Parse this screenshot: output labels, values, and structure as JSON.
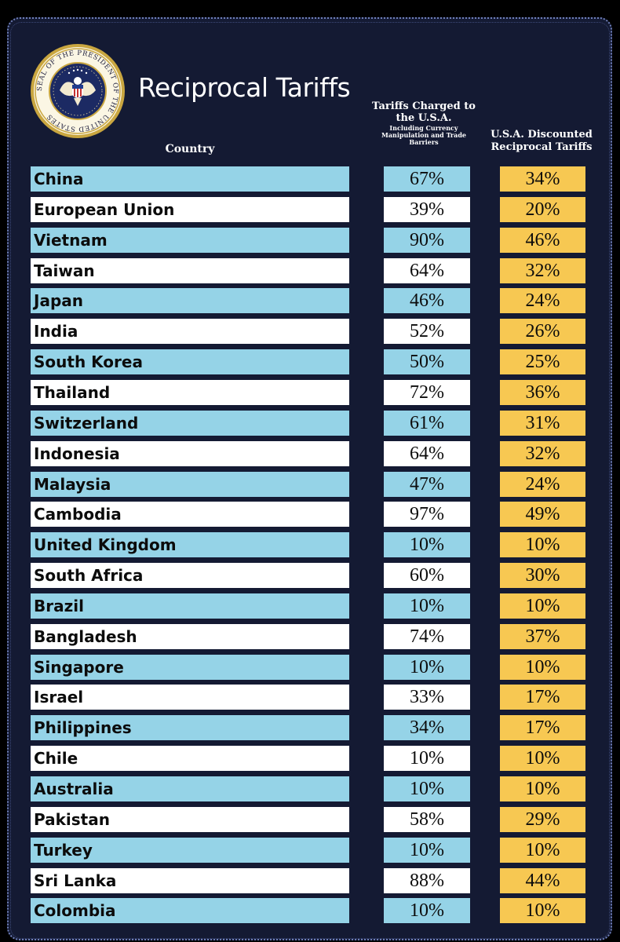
{
  "title": "Reciprocal Tariffs",
  "seal_text": "SEAL OF THE PRESIDENT OF THE UNITED STATES",
  "headers": {
    "country": "Country",
    "charged_main": "Tariffs Charged to the U.S.A.",
    "charged_sub": "Including Currency Manipulation and Trade Barriers",
    "reciprocal": "U.S.A. Discounted Reciprocal Tariffs"
  },
  "colors": {
    "panel_bg": "#141a33",
    "row_blue": "#95d3e7",
    "row_white": "#ffffff",
    "reciprocal_col": "#f7c852"
  },
  "chart_data": {
    "type": "table",
    "title": "Reciprocal Tariffs",
    "columns": [
      "Country",
      "Tariffs Charged to the U.S.A. Including Currency Manipulation and Trade Barriers",
      "U.S.A. Discounted Reciprocal Tariffs"
    ],
    "rows": [
      {
        "country": "China",
        "charged": "67%",
        "reciprocal": "34%"
      },
      {
        "country": "European Union",
        "charged": "39%",
        "reciprocal": "20%"
      },
      {
        "country": "Vietnam",
        "charged": "90%",
        "reciprocal": "46%"
      },
      {
        "country": "Taiwan",
        "charged": "64%",
        "reciprocal": "32%"
      },
      {
        "country": "Japan",
        "charged": "46%",
        "reciprocal": "24%"
      },
      {
        "country": "India",
        "charged": "52%",
        "reciprocal": "26%"
      },
      {
        "country": "South Korea",
        "charged": "50%",
        "reciprocal": "25%"
      },
      {
        "country": "Thailand",
        "charged": "72%",
        "reciprocal": "36%"
      },
      {
        "country": "Switzerland",
        "charged": "61%",
        "reciprocal": "31%"
      },
      {
        "country": "Indonesia",
        "charged": "64%",
        "reciprocal": "32%"
      },
      {
        "country": "Malaysia",
        "charged": "47%",
        "reciprocal": "24%"
      },
      {
        "country": "Cambodia",
        "charged": "97%",
        "reciprocal": "49%"
      },
      {
        "country": "United Kingdom",
        "charged": "10%",
        "reciprocal": "10%"
      },
      {
        "country": "South Africa",
        "charged": "60%",
        "reciprocal": "30%"
      },
      {
        "country": "Brazil",
        "charged": "10%",
        "reciprocal": "10%"
      },
      {
        "country": "Bangladesh",
        "charged": "74%",
        "reciprocal": "37%"
      },
      {
        "country": "Singapore",
        "charged": "10%",
        "reciprocal": "10%"
      },
      {
        "country": "Israel",
        "charged": "33%",
        "reciprocal": "17%"
      },
      {
        "country": "Philippines",
        "charged": "34%",
        "reciprocal": "17%"
      },
      {
        "country": "Chile",
        "charged": "10%",
        "reciprocal": "10%"
      },
      {
        "country": "Australia",
        "charged": "10%",
        "reciprocal": "10%"
      },
      {
        "country": "Pakistan",
        "charged": "58%",
        "reciprocal": "29%"
      },
      {
        "country": "Turkey",
        "charged": "10%",
        "reciprocal": "10%"
      },
      {
        "country": "Sri Lanka",
        "charged": "88%",
        "reciprocal": "44%"
      },
      {
        "country": "Colombia",
        "charged": "10%",
        "reciprocal": "10%"
      }
    ]
  }
}
